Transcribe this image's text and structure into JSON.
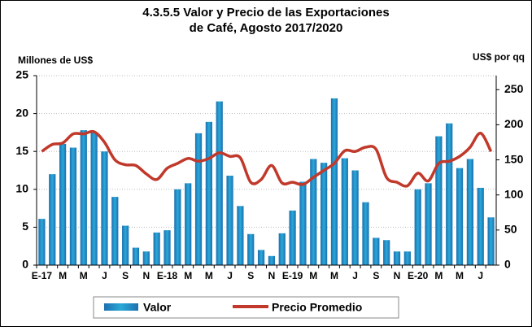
{
  "chart_data": {
    "type": "bar_line",
    "title": [
      "4.3.5.5 Valor y Precio de las Exportaciones",
      "de Café, Agosto 2017/2020"
    ],
    "y_label": "Millones de US$",
    "y2_label": "US$ por qq",
    "categories": [
      "E-17",
      null,
      "M",
      null,
      "M",
      null,
      "J",
      null,
      "S",
      null,
      "N",
      null,
      "E-18",
      null,
      "M",
      null,
      "M",
      null,
      "J",
      null,
      "S",
      null,
      "N",
      null,
      "E-19",
      null,
      "M",
      null,
      "M",
      null,
      "J",
      null,
      "S",
      null,
      "N",
      null,
      "E-20",
      null,
      "M",
      null,
      "M",
      null,
      "J",
      null
    ],
    "series": [
      {
        "name": "Valor",
        "color": "#29a9d8",
        "type": "bar",
        "values": [
          6.1,
          12,
          16,
          15.5,
          17.8,
          17.5,
          15,
          9,
          5.2,
          2.3,
          1.8,
          4.3,
          4.6,
          10,
          10.8,
          17.4,
          18.9,
          21.6,
          11.8,
          7.8,
          4.1,
          2.0,
          1.2,
          4.2,
          7.2,
          11,
          14,
          13.5,
          22,
          14.1,
          12.5,
          8.3,
          3.6,
          3.3,
          1.8,
          1.8,
          10,
          10.8,
          17,
          18.7,
          12.8,
          14,
          10.2,
          6.3
        ]
      },
      {
        "name": "Precio Promedio",
        "color": "#c0392b",
        "type": "line",
        "axis": "y2",
        "values": [
          162,
          172,
          174,
          187,
          187,
          190,
          175,
          150,
          143,
          142,
          130,
          122,
          138,
          145,
          152,
          148,
          152,
          160,
          155,
          153,
          118,
          122,
          142,
          117,
          118,
          115,
          125,
          135,
          145,
          163,
          162,
          168,
          165,
          125,
          118,
          113,
          131,
          120,
          145,
          148,
          155,
          168,
          188,
          162
        ]
      }
    ],
    "ylim": [
      0,
      25
    ],
    "yticks": [
      0,
      5,
      10,
      15,
      20,
      25
    ],
    "y2lim": [
      0,
      270
    ],
    "y2ticks": [
      0,
      50,
      100,
      150,
      200,
      250
    ],
    "grid": true,
    "legend": "bottom"
  }
}
